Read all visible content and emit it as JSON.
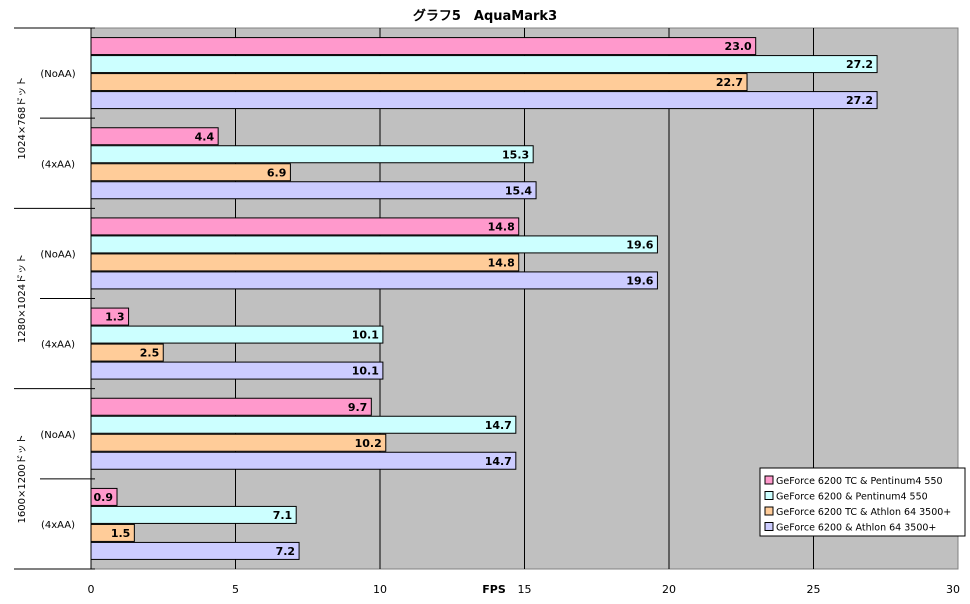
{
  "chart_data": {
    "type": "bar",
    "orientation": "horizontal",
    "title": "グラフ5　AquaMark3",
    "xlabel": "FPS",
    "xlim": [
      0,
      30
    ],
    "xticks": [
      0,
      5,
      10,
      15,
      20,
      25,
      30
    ],
    "grid": "vertical",
    "plot_background": "#c0c0c0",
    "legend_position": "bottom-right",
    "groups": [
      {
        "label": "1024×768ドット",
        "subcategories": [
          "(NoAA)",
          "(4xAA)"
        ]
      },
      {
        "label": "1280×1024ドット",
        "subcategories": [
          "(NoAA)",
          "(4xAA)"
        ]
      },
      {
        "label": "1600×1200ドット",
        "subcategories": [
          "(NoAA)",
          "(4xAA)"
        ]
      }
    ],
    "series": [
      {
        "name": "GeForce 6200 TC & Pentinum4 550",
        "color": "#ff99cc",
        "values": [
          23.0,
          4.4,
          14.8,
          1.3,
          9.7,
          0.9
        ]
      },
      {
        "name": "GeForce 6200 & Pentinum4 550",
        "color": "#ccffff",
        "values": [
          27.2,
          15.3,
          19.6,
          10.1,
          14.7,
          7.1
        ]
      },
      {
        "name": "GeForce 6200 TC & Athlon 64 3500+",
        "color": "#ffcc99",
        "values": [
          22.7,
          6.9,
          14.8,
          2.5,
          10.2,
          1.5
        ]
      },
      {
        "name": "GeForce 6200 & Athlon 64 3500+",
        "color": "#ccccff",
        "values": [
          27.2,
          15.4,
          19.6,
          10.1,
          14.7,
          7.2
        ]
      }
    ]
  }
}
